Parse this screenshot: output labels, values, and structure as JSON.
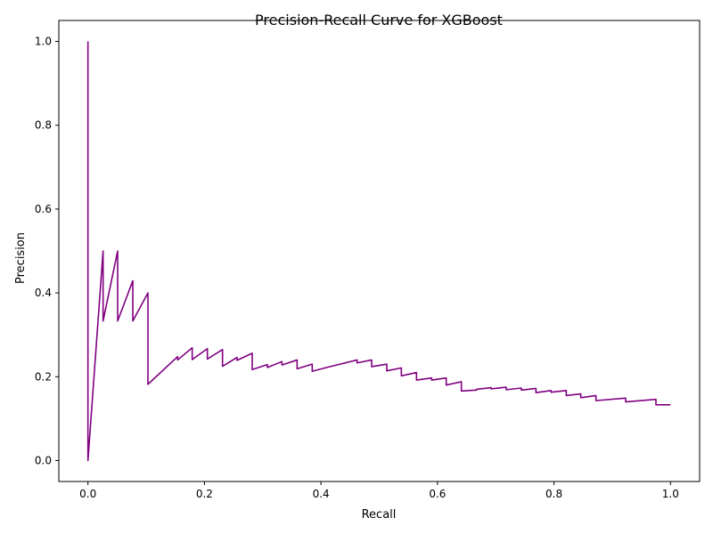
{
  "chart_data": {
    "type": "line",
    "title": "Precision-Recall Curve for XGBoost",
    "xlabel": "Recall",
    "ylabel": "Precision",
    "xlim": [
      -0.05,
      1.05
    ],
    "ylim": [
      -0.05,
      1.05
    ],
    "xticks": [
      0.0,
      0.2,
      0.4,
      0.6,
      0.8,
      1.0
    ],
    "xtick_labels": [
      "0.0",
      "0.2",
      "0.4",
      "0.6",
      "0.8",
      "1.0"
    ],
    "yticks": [
      0.0,
      0.2,
      0.4,
      0.6,
      0.8,
      1.0
    ],
    "ytick_labels": [
      "0.0",
      "0.2",
      "0.4",
      "0.6",
      "0.8",
      "1.0"
    ],
    "grid": false,
    "series": [
      {
        "color": "#800080",
        "x": [
          1.0,
          0.975,
          0.975,
          0.923,
          0.923,
          0.872,
          0.872,
          0.846,
          0.846,
          0.821,
          0.821,
          0.795,
          0.795,
          0.769,
          0.769,
          0.744,
          0.744,
          0.718,
          0.718,
          0.692,
          0.692,
          0.667,
          0.667,
          0.641,
          0.641,
          0.615,
          0.615,
          0.59,
          0.59,
          0.564,
          0.564,
          0.538,
          0.538,
          0.513,
          0.513,
          0.487,
          0.487,
          0.462,
          0.462,
          0.41,
          0.41,
          0.385,
          0.385,
          0.359,
          0.359,
          0.333,
          0.333,
          0.308,
          0.308,
          0.282,
          0.282,
          0.256,
          0.256,
          0.231,
          0.231,
          0.205,
          0.205,
          0.179,
          0.179,
          0.154,
          0.154,
          0.103,
          0.103,
          0.077,
          0.077,
          0.051,
          0.051,
          0.026,
          0.026,
          0.0,
          0.0
        ],
        "y": [
          0.133,
          0.133,
          0.146,
          0.14,
          0.149,
          0.143,
          0.155,
          0.15,
          0.159,
          0.155,
          0.167,
          0.163,
          0.167,
          0.162,
          0.172,
          0.168,
          0.173,
          0.169,
          0.175,
          0.171,
          0.174,
          0.17,
          0.168,
          0.166,
          0.188,
          0.18,
          0.197,
          0.192,
          0.197,
          0.192,
          0.21,
          0.202,
          0.221,
          0.214,
          0.23,
          0.224,
          0.24,
          0.233,
          0.24,
          0.222,
          0.222,
          0.213,
          0.23,
          0.219,
          0.24,
          0.228,
          0.236,
          0.222,
          0.229,
          0.217,
          0.256,
          0.239,
          0.246,
          0.225,
          0.265,
          0.242,
          0.267,
          0.241,
          0.269,
          0.24,
          0.248,
          0.182,
          0.4,
          0.333,
          0.429,
          0.333,
          0.5,
          0.333,
          0.5,
          0.0,
          1.0
        ]
      }
    ]
  }
}
